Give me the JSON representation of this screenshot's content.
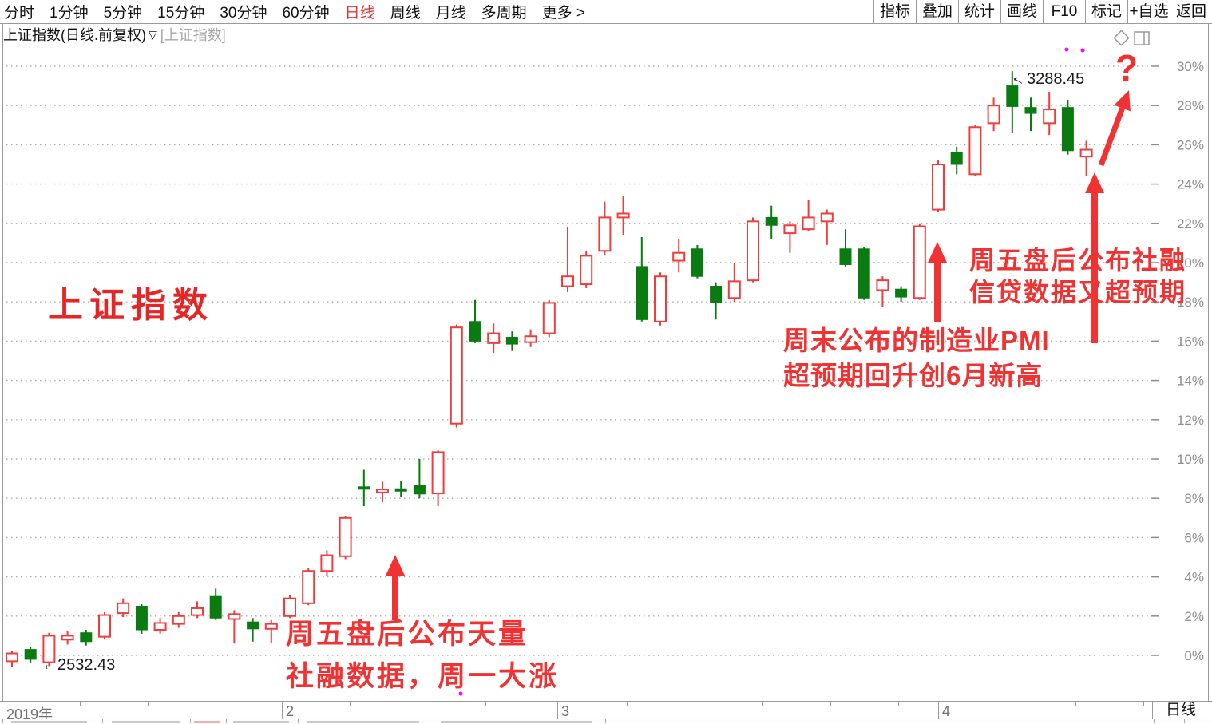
{
  "toolbar": {
    "items": [
      "分时",
      "1分钟",
      "5分钟",
      "15分钟",
      "30分钟",
      "60分钟",
      "日线",
      "周线",
      "月线",
      "多周期",
      "更多 >"
    ],
    "active_item": "日线",
    "right_items": [
      "指标",
      "叠加",
      "统计",
      "画线",
      "F10",
      "标记",
      "+自选",
      "返回"
    ]
  },
  "title": {
    "name": "上证指数(日线.前复权)",
    "dropdown": "▽",
    "overlay": "[上证指数]"
  },
  "watermark": "上证指数",
  "annotations": {
    "note1": {
      "line1": "周五盘后公布天量",
      "line2": "社融数据，周一大涨"
    },
    "note2": {
      "line1": "周末公布的制造业PMI",
      "line2": "超预期回升创6月新高"
    },
    "note3": {
      "line1": "周五盘后公布社融",
      "line2": "信贷数据又超预期"
    },
    "question_mark": "?",
    "low_marker": {
      "arrow": "←",
      "value": "2532.43"
    },
    "high_marker": {
      "arrow": "←",
      "value": "3288.45"
    }
  },
  "chart_data": {
    "type": "candlestick",
    "title": "上证指数",
    "period": "日线",
    "adjustment": "前复权",
    "y_unit": "percent change",
    "ylim": [
      -2,
      31
    ],
    "y_ticks": [
      0,
      2,
      4,
      6,
      8,
      10,
      12,
      14,
      16,
      18,
      20,
      22,
      24,
      26,
      28,
      30
    ],
    "y_tick_labels": [
      "0%",
      "2%",
      "4%",
      "6%",
      "8%",
      "10%",
      "12%",
      "14%",
      "16%",
      "18%",
      "20%",
      "22%",
      "24%",
      "26%",
      "28%",
      "30%"
    ],
    "x_axis": {
      "year": "2019年",
      "month_dividers": [
        "2",
        "3",
        "4"
      ],
      "period_box": "日线"
    },
    "marked_low": 2532.43,
    "marked_high": 3288.45,
    "colors": {
      "up": "#f23c3c",
      "down": "#0a7b10",
      "grid": "#ababab",
      "annotation": "#f13232",
      "magenta_dot": "#ff00ff"
    },
    "candles_ohlc_pct": [
      [
        -0.3,
        0.25,
        -0.6,
        0.1
      ],
      [
        0.3,
        0.45,
        -0.4,
        -0.2
      ],
      [
        -0.35,
        1.15,
        -0.55,
        1.0
      ],
      [
        0.8,
        1.25,
        0.55,
        1.0
      ],
      [
        1.15,
        1.3,
        0.5,
        0.7
      ],
      [
        0.95,
        2.2,
        0.8,
        2.05
      ],
      [
        2.15,
        2.9,
        1.95,
        2.65
      ],
      [
        2.5,
        2.6,
        1.1,
        1.3
      ],
      [
        1.3,
        1.9,
        1.1,
        1.65
      ],
      [
        1.6,
        2.2,
        1.4,
        2.0
      ],
      [
        2.05,
        2.75,
        1.9,
        2.4
      ],
      [
        3.0,
        3.4,
        1.8,
        1.9
      ],
      [
        1.85,
        2.3,
        0.6,
        2.1
      ],
      [
        1.7,
        1.9,
        0.7,
        1.35
      ],
      [
        1.35,
        1.8,
        0.65,
        1.6
      ],
      [
        2.0,
        3.05,
        1.9,
        2.9
      ],
      [
        2.65,
        4.45,
        2.55,
        4.3
      ],
      [
        4.3,
        5.35,
        4.05,
        5.1
      ],
      [
        5.05,
        7.1,
        4.9,
        7.0
      ],
      [
        8.55,
        9.45,
        7.6,
        8.5
      ],
      [
        8.3,
        8.85,
        7.8,
        8.45
      ],
      [
        8.45,
        8.9,
        8.05,
        8.4
      ],
      [
        8.65,
        10.0,
        8.0,
        8.22
      ],
      [
        8.25,
        10.45,
        7.6,
        10.35
      ],
      [
        11.8,
        16.85,
        11.6,
        16.7
      ],
      [
        17.0,
        18.1,
        15.9,
        16.0
      ],
      [
        15.9,
        16.9,
        15.4,
        16.4
      ],
      [
        16.2,
        16.5,
        15.5,
        15.85
      ],
      [
        15.95,
        16.6,
        15.7,
        16.25
      ],
      [
        16.4,
        18.1,
        16.2,
        17.95
      ],
      [
        18.8,
        21.8,
        18.5,
        19.3
      ],
      [
        18.9,
        20.6,
        18.7,
        20.35
      ],
      [
        20.6,
        23.1,
        20.4,
        22.3
      ],
      [
        22.3,
        23.4,
        21.4,
        22.5
      ],
      [
        19.8,
        21.3,
        17.0,
        17.1
      ],
      [
        17.0,
        19.5,
        16.8,
        19.3
      ],
      [
        20.1,
        21.2,
        19.5,
        20.5
      ],
      [
        20.7,
        20.9,
        19.2,
        19.3
      ],
      [
        18.8,
        19.0,
        17.1,
        17.95
      ],
      [
        18.2,
        20.0,
        18.0,
        19.05
      ],
      [
        19.1,
        22.3,
        19.0,
        22.1
      ],
      [
        22.3,
        22.9,
        21.2,
        21.9
      ],
      [
        21.5,
        22.1,
        20.5,
        21.9
      ],
      [
        21.7,
        23.2,
        21.6,
        22.3
      ],
      [
        22.1,
        22.7,
        20.9,
        22.5
      ],
      [
        20.7,
        21.7,
        19.8,
        19.9
      ],
      [
        20.7,
        20.8,
        18.1,
        18.2
      ],
      [
        18.6,
        19.3,
        17.75,
        19.1
      ],
      [
        18.65,
        18.8,
        18.0,
        18.25
      ],
      [
        18.2,
        22.0,
        18.1,
        21.85
      ],
      [
        22.7,
        25.2,
        22.6,
        25.0
      ],
      [
        25.6,
        25.9,
        24.5,
        25.0
      ],
      [
        24.5,
        27.0,
        24.4,
        26.9
      ],
      [
        27.1,
        28.4,
        26.7,
        28.0
      ],
      [
        29.0,
        29.75,
        26.6,
        27.95
      ],
      [
        27.9,
        28.4,
        26.7,
        27.6
      ],
      [
        27.1,
        28.7,
        26.5,
        27.8
      ],
      [
        27.9,
        28.3,
        25.5,
        25.7
      ],
      [
        25.4,
        26.2,
        24.4,
        25.75
      ]
    ]
  }
}
